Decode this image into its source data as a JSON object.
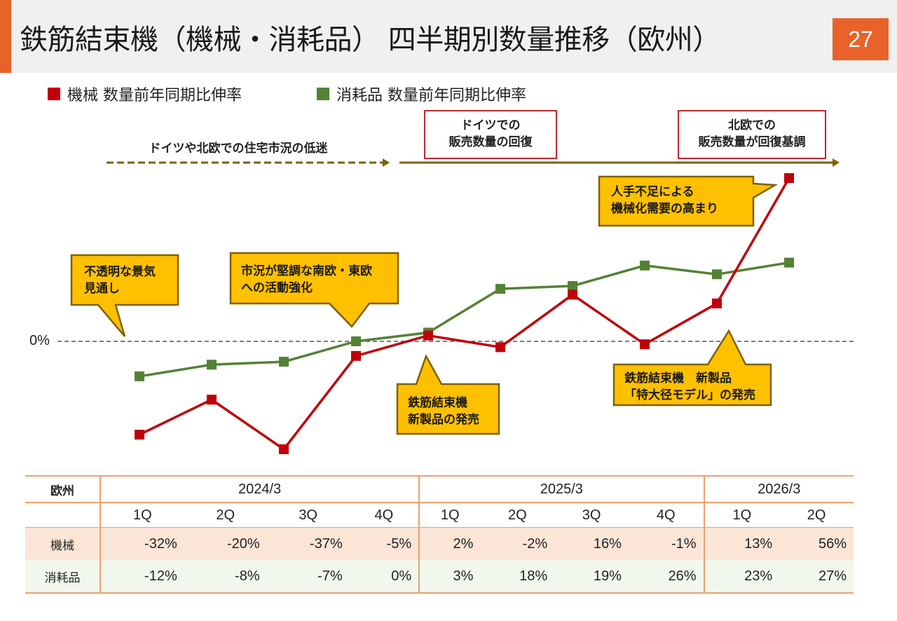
{
  "header": {
    "title": "鉄筋結束機（機械・消耗品） 四半期別数量推移（欧州）",
    "page_number": "27"
  },
  "legend": {
    "machine": {
      "label": "機械 数量前年同期比伸率",
      "color": "#c0000a"
    },
    "consumable": {
      "label": "消耗品 数量前年同期比伸率",
      "color": "#548235"
    }
  },
  "annotations": {
    "slump": "ドイツや北欧での住宅市況の低迷",
    "recovery_de": [
      "ドイツでの",
      "販売数量の回復"
    ],
    "recovery_nordic": [
      "北欧での",
      "販売数量が回復基調"
    ],
    "labor": [
      "人手不足による",
      "機械化需要の高まり"
    ],
    "outlook": [
      "不透明な景気",
      "見通し"
    ],
    "south_east": [
      "市況が堅調な南欧・東欧",
      "への活動強化"
    ],
    "launch1": [
      "鉄筋結束機",
      "新製品の発売"
    ],
    "launch2": [
      "鉄筋結束機　新製品",
      "「特大径モデル」の発売"
    ],
    "zero_label": "0%"
  },
  "chart_data": {
    "type": "line",
    "title": "鉄筋結束機（機械・消耗品） 四半期別数量推移（欧州）",
    "categories": [
      "2024/3 1Q",
      "2024/3 2Q",
      "2024/3 3Q",
      "2024/3 4Q",
      "2025/3 1Q",
      "2025/3 2Q",
      "2025/3 3Q",
      "2025/3 4Q",
      "2026/3 1Q",
      "2026/3 2Q"
    ],
    "series": [
      {
        "name": "機械 数量前年同期比伸率",
        "values": [
          -32,
          -20,
          -37,
          -5,
          2,
          -2,
          16,
          -1,
          13,
          56
        ],
        "color": "#c0000a"
      },
      {
        "name": "消耗品 数量前年同期比伸率",
        "values": [
          -12,
          -8,
          -7,
          0,
          3,
          18,
          19,
          26,
          23,
          27
        ],
        "color": "#548235"
      }
    ],
    "ylim": [
      -40,
      56
    ],
    "reference_line": 0,
    "grid": false
  },
  "table": {
    "region": "欧州",
    "years": [
      "2024/3",
      "2025/3",
      "2026/3"
    ],
    "quarters": [
      "1Q",
      "2Q",
      "3Q",
      "4Q",
      "1Q",
      "2Q",
      "3Q",
      "4Q",
      "1Q",
      "2Q"
    ],
    "rows": [
      {
        "label": "機械",
        "values": [
          "-32%",
          "-20%",
          "-37%",
          "-5%",
          "2%",
          "-2%",
          "16%",
          "-1%",
          "13%",
          "56%"
        ]
      },
      {
        "label": "消耗品",
        "values": [
          "-12%",
          "-8%",
          "-7%",
          "0%",
          "3%",
          "18%",
          "19%",
          "26%",
          "23%",
          "27%"
        ]
      }
    ]
  }
}
